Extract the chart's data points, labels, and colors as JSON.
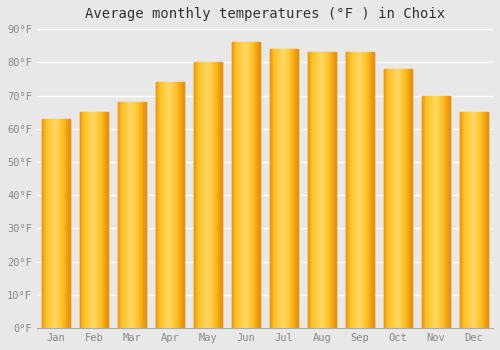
{
  "title": "Average monthly temperatures (°F ) in Choix",
  "months": [
    "Jan",
    "Feb",
    "Mar",
    "Apr",
    "May",
    "Jun",
    "Jul",
    "Aug",
    "Sep",
    "Oct",
    "Nov",
    "Dec"
  ],
  "values": [
    63,
    65,
    68,
    74,
    80,
    86,
    84,
    83,
    83,
    78,
    70,
    65
  ],
  "bar_color_light": "#FFD966",
  "bar_color_mid": "#FFC125",
  "bar_color_dark": "#E8900A",
  "ylim": [
    0,
    90
  ],
  "yticks": [
    0,
    10,
    20,
    30,
    40,
    50,
    60,
    70,
    80,
    90
  ],
  "ytick_labels": [
    "0°F",
    "10°F",
    "20°F",
    "30°F",
    "40°F",
    "50°F",
    "60°F",
    "70°F",
    "80°F",
    "90°F"
  ],
  "background_color": "#e8e8e8",
  "grid_color": "#ffffff",
  "title_fontsize": 10,
  "tick_fontsize": 7.5,
  "tick_color": "#888888",
  "title_color": "#333333"
}
